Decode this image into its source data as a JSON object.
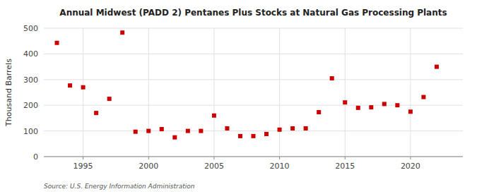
{
  "chart_data": {
    "type": "scatter",
    "title": "Annual Midwest (PADD 2) Pentanes Plus Stocks at Natural Gas Processing Plants",
    "y_label": "Thousand Barrels",
    "annotation": "Source: U.S. Energy Information Administration",
    "color": "#cc0000",
    "marker": "square",
    "grid": true,
    "xlim": [
      1992,
      2024
    ],
    "ylim": [
      0,
      500
    ],
    "xticks": [
      1995,
      2000,
      2005,
      2010,
      2015,
      2020
    ],
    "yticks": [
      0,
      100,
      200,
      300,
      400,
      500
    ],
    "x": [
      1993,
      1994,
      1995,
      1996,
      1997,
      1998,
      1999,
      2000,
      2001,
      2002,
      2003,
      2004,
      2005,
      2006,
      2007,
      2008,
      2009,
      2010,
      2011,
      2012,
      2013,
      2014,
      2015,
      2016,
      2017,
      2018,
      2019,
      2020,
      2021,
      2022
    ],
    "values": [
      443,
      277,
      270,
      170,
      225,
      483,
      97,
      100,
      107,
      75,
      100,
      100,
      160,
      110,
      80,
      80,
      88,
      105,
      110,
      110,
      173,
      305,
      211,
      190,
      192,
      205,
      200,
      175,
      232,
      350
    ]
  }
}
